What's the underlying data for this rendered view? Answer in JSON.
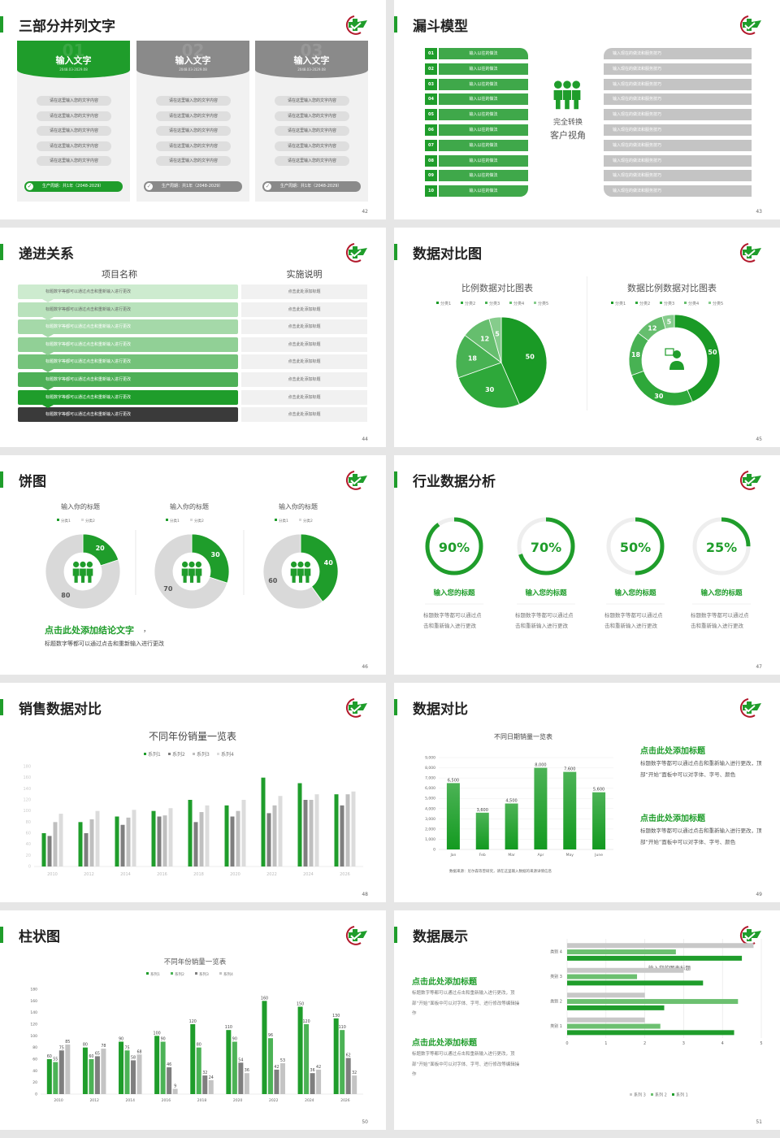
{
  "colors": {
    "green": "#1f9d2b",
    "green_mid": "#4cb356",
    "green_light": "#6cc070",
    "gray_dark": "#7f7f7f",
    "gray": "#bfbfbf",
    "gray_light": "#d9d9d9",
    "dark": "#3a3a3a",
    "logo_red": "#b2182b"
  },
  "s42": {
    "page": "42",
    "title": "三部分并列文字",
    "cards": [
      {
        "num": "01",
        "heading": "输入文字",
        "date": "2048.03-2029.08",
        "items": [
          "请在这里输入您的文字内容",
          "请在这里输入您的文字内容",
          "请在这里输入您的文字内容",
          "请在这里输入您的文字内容",
          "请在这里输入您的文字内容"
        ],
        "footer": "生产周期：共1年（2048-2029）",
        "accent": "green"
      },
      {
        "num": "02",
        "heading": "输入文字",
        "date": "2048.03-2029.08",
        "items": [
          "请在这里输入您的文字内容",
          "请在这里输入您的文字内容",
          "请在这里输入您的文字内容",
          "请在这里输入您的文字内容",
          "请在这里输入您的文字内容"
        ],
        "footer": "生产周期：共1年（2048-2029）",
        "accent": "gray"
      },
      {
        "num": "03",
        "heading": "输入文字",
        "date": "2048.03-2029.08",
        "items": [
          "请在这里输入您的文字内容",
          "请在这里输入您的文字内容",
          "请在这里输入您的文字内容",
          "请在这里输入您的文字内容",
          "请在这里输入您的文字内容"
        ],
        "footer": "生产周期：共1年（2048-2029）",
        "accent": "gray"
      }
    ]
  },
  "s43": {
    "page": "43",
    "title": "漏斗模型",
    "center_line1": "完全转换",
    "center_line2": "客户视角",
    "center_icon": "people-icon",
    "rows": [
      {
        "num": "01",
        "left": "输入以往的做法",
        "right": "输入现在的做法和服务技巧"
      },
      {
        "num": "02",
        "left": "输入以往的做法",
        "right": "输入现在的做法和服务技巧"
      },
      {
        "num": "03",
        "left": "输入以往的做法",
        "right": "输入现在的做法和服务技巧"
      },
      {
        "num": "04",
        "left": "输入以往的做法",
        "right": "输入现在的做法和服务技巧"
      },
      {
        "num": "05",
        "left": "输入以往的做法",
        "right": "输入现在的做法和服务技巧"
      },
      {
        "num": "06",
        "left": "输入以往的做法",
        "right": "输入现在的做法和服务技巧"
      },
      {
        "num": "07",
        "left": "输入以往的做法",
        "right": "输入现在的做法和服务技巧"
      },
      {
        "num": "08",
        "left": "输入以往的做法",
        "right": "输入现在的做法和服务技巧"
      },
      {
        "num": "09",
        "left": "输入以往的做法",
        "right": "输入现在的做法和服务技巧"
      },
      {
        "num": "10",
        "left": "输入以往的做法",
        "right": "输入现在的做法和服务技巧"
      }
    ]
  },
  "s44": {
    "page": "44",
    "title": "递进关系",
    "col1": "项目名称",
    "col2": "实施说明",
    "row_colors": [
      "#cdebcf",
      "#b9e2bc",
      "#a5d9a9",
      "#91d096",
      "#74c27a",
      "#4eb057",
      "#1f9d2b",
      "#3a3a3a"
    ],
    "rows": [
      {
        "item": "标题数字等都可以通过点击和重新输入进行更改",
        "desc": "点击此处添加标题"
      },
      {
        "item": "标题数字等都可以通过点击和重新输入进行更改",
        "desc": "点击此处添加标题"
      },
      {
        "item": "标题数字等都可以通过点击和重新输入进行更改",
        "desc": "点击此处添加标题"
      },
      {
        "item": "标题数字等都可以通过点击和重新输入进行更改",
        "desc": "点击此处添加标题"
      },
      {
        "item": "标题数字等都可以通过点击和重新输入进行更改",
        "desc": "点击此处添加标题"
      },
      {
        "item": "标题数字等都可以通过点击和重新输入进行更改",
        "desc": "点击此处添加标题"
      },
      {
        "item": "标题数字等都可以通过点击和重新输入进行更改",
        "desc": "点击此处添加标题"
      },
      {
        "item": "标题数字等都可以通过点击和重新输入进行更改",
        "desc": "点击此处添加标题"
      }
    ]
  },
  "s45": {
    "page": "45",
    "title": "数据对比图"
  },
  "s46": {
    "page": "46",
    "title": "饼图",
    "conclusion": "点击此处添加结论文字",
    "conclusion_comma": "，",
    "conclusion_sub": "标题数字等都可以通过点击和重新输入进行更改",
    "center_icon": "people-icon"
  },
  "s47": {
    "page": "47",
    "title": "行业数据分析",
    "items": [
      {
        "percent": 90,
        "label": "90%",
        "heading": "输入您的标题",
        "text": "标题数字等都可以通过点击和重新输入进行更改"
      },
      {
        "percent": 70,
        "label": "70%",
        "heading": "输入您的标题",
        "text": "标题数字等都可以通过点击和重新输入进行更改"
      },
      {
        "percent": 50,
        "label": "50%",
        "heading": "输入您的标题",
        "text": "标题数字等都可以通过点击和重新输入进行更改"
      },
      {
        "percent": 25,
        "label": "25%",
        "heading": "输入您的标题",
        "text": "标题数字等都可以通过点击和重新输入进行更改"
      }
    ]
  },
  "s48": {
    "page": "48",
    "title": "销售数据对比"
  },
  "s49": {
    "page": "49",
    "title": "数据对比",
    "blocks": [
      {
        "heading": "点击此处添加标题",
        "text": "标题数字等都可以通过点击和重新输入进行更改，顶部“开始”面板中可以对字体、字号、颜色"
      },
      {
        "heading": "点击此处添加标题",
        "text": "标题数字等都可以通过点击和重新输入进行更改，顶部“开始”面板中可以对字体、字号、颜色"
      }
    ],
    "source": "数据来源：尼尔森等曾研究，请在这里输入数据的来源详情信息"
  },
  "s50": {
    "page": "50",
    "title": "柱状图"
  },
  "s51": {
    "page": "51",
    "title": "数据展示",
    "blocks": [
      {
        "heading": "点击此处添加标题",
        "text": "标题数字等都可以通过点击和重新输入进行更改，顶部“开始”面板中可以对字体、字号、进行修改等编辑操作"
      },
      {
        "heading": "点击此处添加标题",
        "text": "标题数字等都可以通过点击和重新输入进行更改，顶部“开始”面板中可以对字体、字号、进行修改等编辑操作"
      }
    ]
  },
  "chart_data": [
    {
      "id": "s45-pie",
      "type": "pie",
      "title": "比例数据对比图表",
      "categories": [
        "分类1",
        "分类2",
        "分类3",
        "分类4",
        "分类5"
      ],
      "values": [
        50,
        30,
        18,
        12,
        5
      ],
      "legend": "top"
    },
    {
      "id": "s45-donut",
      "type": "pie",
      "title": "数据比例数据对比图表",
      "categories": [
        "分类1",
        "分类2",
        "分类3",
        "分类4",
        "分类5"
      ],
      "values": [
        50,
        30,
        18,
        12,
        5
      ],
      "legend": "top",
      "donut": true
    },
    {
      "id": "s46-d1",
      "type": "pie",
      "title": "输入你的标题",
      "categories": [
        "分类1",
        "分类2"
      ],
      "values": [
        20,
        80
      ],
      "donut": true,
      "legend": "top"
    },
    {
      "id": "s46-d2",
      "type": "pie",
      "title": "输入你的标题",
      "categories": [
        "分类1",
        "分类2"
      ],
      "values": [
        30,
        70
      ],
      "donut": true,
      "legend": "top"
    },
    {
      "id": "s46-d3",
      "type": "pie",
      "title": "输入你的标题",
      "categories": [
        "分类1",
        "分类2"
      ],
      "values": [
        40,
        60
      ],
      "donut": true,
      "legend": "top"
    },
    {
      "id": "s48-bars",
      "type": "bar",
      "title": "不同年份销量一览表",
      "categories": [
        "2010",
        "2012",
        "2014",
        "2016",
        "2018",
        "2020",
        "2022",
        "2024",
        "2026"
      ],
      "series": [
        {
          "name": "系列1",
          "values": [
            60,
            80,
            90,
            100,
            120,
            110,
            160,
            150,
            130
          ]
        },
        {
          "name": "系列2",
          "values": [
            55,
            60,
            75,
            90,
            80,
            90,
            96,
            120,
            110
          ]
        },
        {
          "name": "系列3",
          "values": [
            80,
            85,
            88,
            92,
            98,
            100,
            110,
            120,
            130
          ]
        },
        {
          "name": "系列4",
          "values": [
            95,
            100,
            102,
            105,
            110,
            120,
            127,
            130,
            135
          ]
        }
      ],
      "yticks": [
        "0",
        "20",
        "40",
        "60",
        "80",
        "100",
        "120",
        "140",
        "160",
        "180"
      ],
      "ylim": [
        0,
        180
      ],
      "legend": "top",
      "grid": false
    },
    {
      "id": "s49-bars",
      "type": "bar",
      "title": "不同日期销量一览表",
      "categories": [
        "Jan",
        "Feb",
        "Mar",
        "Apr",
        "May",
        "June"
      ],
      "values": [
        6500,
        3600,
        4500,
        8000,
        7600,
        5600
      ],
      "data_labels": [
        "6,500",
        "3,600",
        "4,500",
        "8,000",
        "7,600",
        "5,600"
      ],
      "yticks": [
        "0",
        "1,000",
        "2,000",
        "3,000",
        "4,000",
        "5,000",
        "6,000",
        "7,000",
        "8,000",
        "9,000"
      ],
      "ylim": [
        0,
        9000
      ],
      "grid": true
    },
    {
      "id": "s50-bars",
      "type": "bar",
      "title": "不同年份销量一览表",
      "categories": [
        "2010",
        "2012",
        "2014",
        "2016",
        "2018",
        "2020",
        "2022",
        "2024",
        "2026"
      ],
      "series": [
        {
          "name": "系列1",
          "values": [
            60,
            80,
            90,
            100,
            120,
            110,
            160,
            150,
            130
          ]
        },
        {
          "name": "系列2",
          "values": [
            55,
            60,
            75,
            90,
            80,
            90,
            96,
            120,
            110
          ]
        },
        {
          "name": "系列3",
          "values": [
            75,
            65,
            58,
            46,
            32,
            54,
            42,
            36,
            62
          ]
        },
        {
          "name": "系列4",
          "values": [
            85,
            78,
            68,
            9,
            24,
            36,
            53,
            42,
            32
          ]
        }
      ],
      "yticks": [
        "0",
        "20",
        "40",
        "60",
        "80",
        "100",
        "120",
        "140",
        "160",
        "180"
      ],
      "ylim": [
        0,
        180
      ],
      "legend": "top",
      "data_labels": true
    },
    {
      "id": "s51-hbars",
      "type": "bar",
      "orientation": "horizontal",
      "title": "输入您的图表标题",
      "categories": [
        "类别 1",
        "类别 2",
        "类别 3",
        "类别 4"
      ],
      "series": [
        {
          "name": "系列 1",
          "values": [
            4.3,
            2.5,
            3.5,
            4.5
          ]
        },
        {
          "name": "系列 2",
          "values": [
            2.4,
            4.4,
            1.8,
            2.8
          ]
        },
        {
          "name": "系列 3",
          "values": [
            2.0,
            2.0,
            3.0,
            4.8
          ]
        }
      ],
      "xticks": [
        "0",
        "1",
        "2",
        "3",
        "4",
        "5"
      ],
      "xlim": [
        0,
        5
      ],
      "legend": "bottom",
      "grid": true
    }
  ]
}
